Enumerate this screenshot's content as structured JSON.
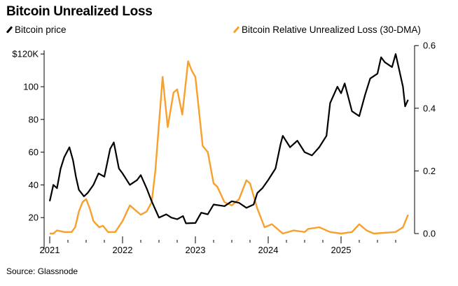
{
  "chart_data": {
    "type": "line",
    "title": "Bitcoin Unrealized Loss",
    "source": "Source: Glassnode",
    "x_ticks": [
      "2021",
      "2022",
      "2023",
      "2024",
      "2025"
    ],
    "xlim": [
      2021,
      2025.95
    ],
    "y_left": {
      "ticks": [
        "$120K",
        "100",
        "80",
        "60",
        "40",
        "20"
      ],
      "tick_values": [
        120,
        100,
        80,
        60,
        40,
        20
      ],
      "ylim": [
        10,
        130
      ]
    },
    "y_right": {
      "ticks": [
        "0.6",
        "0.4",
        "0.2",
        "0.0"
      ],
      "tick_values": [
        0.6,
        0.4,
        0.2,
        0.0
      ],
      "ylim": [
        0,
        0.6
      ]
    },
    "grid": false,
    "legend_placement": "top",
    "series": [
      {
        "name": "Bitcoin price",
        "axis": "left",
        "color": "#000000",
        "x": [
          2021.0,
          2021.05,
          2021.1,
          2021.15,
          2021.2,
          2021.27,
          2021.32,
          2021.36,
          2021.4,
          2021.47,
          2021.52,
          2021.6,
          2021.67,
          2021.75,
          2021.83,
          2021.88,
          2021.95,
          2022.0,
          2022.1,
          2022.2,
          2022.25,
          2022.33,
          2022.4,
          2022.45,
          2022.5,
          2022.6,
          2022.67,
          2022.75,
          2022.83,
          2022.87,
          2023.0,
          2023.08,
          2023.17,
          2023.25,
          2023.4,
          2023.5,
          2023.6,
          2023.7,
          2023.8,
          2023.85,
          2023.92,
          2024.0,
          2024.1,
          2024.17,
          2024.2,
          2024.3,
          2024.4,
          2024.5,
          2024.6,
          2024.7,
          2024.8,
          2024.85,
          2024.95,
          2025.0,
          2025.05,
          2025.15,
          2025.25,
          2025.33,
          2025.4,
          2025.5,
          2025.55,
          2025.6,
          2025.7,
          2025.75,
          2025.8,
          2025.85,
          2025.88,
          2025.92
        ],
        "values": [
          30,
          40,
          38,
          50,
          57,
          63,
          55,
          45,
          37,
          33,
          35,
          40,
          47,
          45,
          62,
          66,
          50,
          47,
          40,
          43,
          46,
          38,
          30,
          25,
          20,
          22,
          20,
          19,
          21,
          16.5,
          16.7,
          23,
          22,
          28,
          27,
          30,
          29,
          26,
          28,
          35,
          38,
          43,
          50,
          65,
          70,
          63,
          67,
          60,
          58,
          63,
          70,
          90,
          100,
          96,
          102,
          85,
          82,
          95,
          105,
          108,
          118,
          115,
          112,
          120,
          110,
          100,
          88,
          92
        ]
      },
      {
        "name": "Bitcoin Relative Unrealized Loss (30-DMA)",
        "axis": "right",
        "color": "#f7a02c",
        "x": [
          2021.0,
          2021.05,
          2021.1,
          2021.2,
          2021.3,
          2021.35,
          2021.4,
          2021.45,
          2021.5,
          2021.55,
          2021.6,
          2021.68,
          2021.73,
          2021.8,
          2021.9,
          2022.0,
          2022.1,
          2022.15,
          2022.25,
          2022.33,
          2022.4,
          2022.45,
          2022.5,
          2022.55,
          2022.62,
          2022.7,
          2022.75,
          2022.82,
          2022.9,
          2022.95,
          2023.0,
          2023.1,
          2023.17,
          2023.25,
          2023.3,
          2023.4,
          2023.5,
          2023.6,
          2023.7,
          2023.75,
          2023.85,
          2023.95,
          2024.05,
          2024.2,
          2024.35,
          2024.5,
          2024.55,
          2024.7,
          2024.85,
          2025.0,
          2025.15,
          2025.25,
          2025.35,
          2025.45,
          2025.75,
          2025.85,
          2025.92
        ],
        "values": [
          0.0,
          0.0,
          0.01,
          0.005,
          0.005,
          0.02,
          0.07,
          0.1,
          0.11,
          0.08,
          0.04,
          0.02,
          0.025,
          0.005,
          0.005,
          0.04,
          0.09,
          0.08,
          0.06,
          0.07,
          0.1,
          0.2,
          0.35,
          0.5,
          0.34,
          0.45,
          0.46,
          0.38,
          0.55,
          0.52,
          0.5,
          0.28,
          0.26,
          0.16,
          0.15,
          0.1,
          0.09,
          0.11,
          0.17,
          0.16,
          0.08,
          0.02,
          0.03,
          0.0,
          0.01,
          0.005,
          0.015,
          0.02,
          0.005,
          0.0,
          0.005,
          0.03,
          0.01,
          0.0,
          0.005,
          0.02,
          0.06
        ]
      }
    ]
  }
}
